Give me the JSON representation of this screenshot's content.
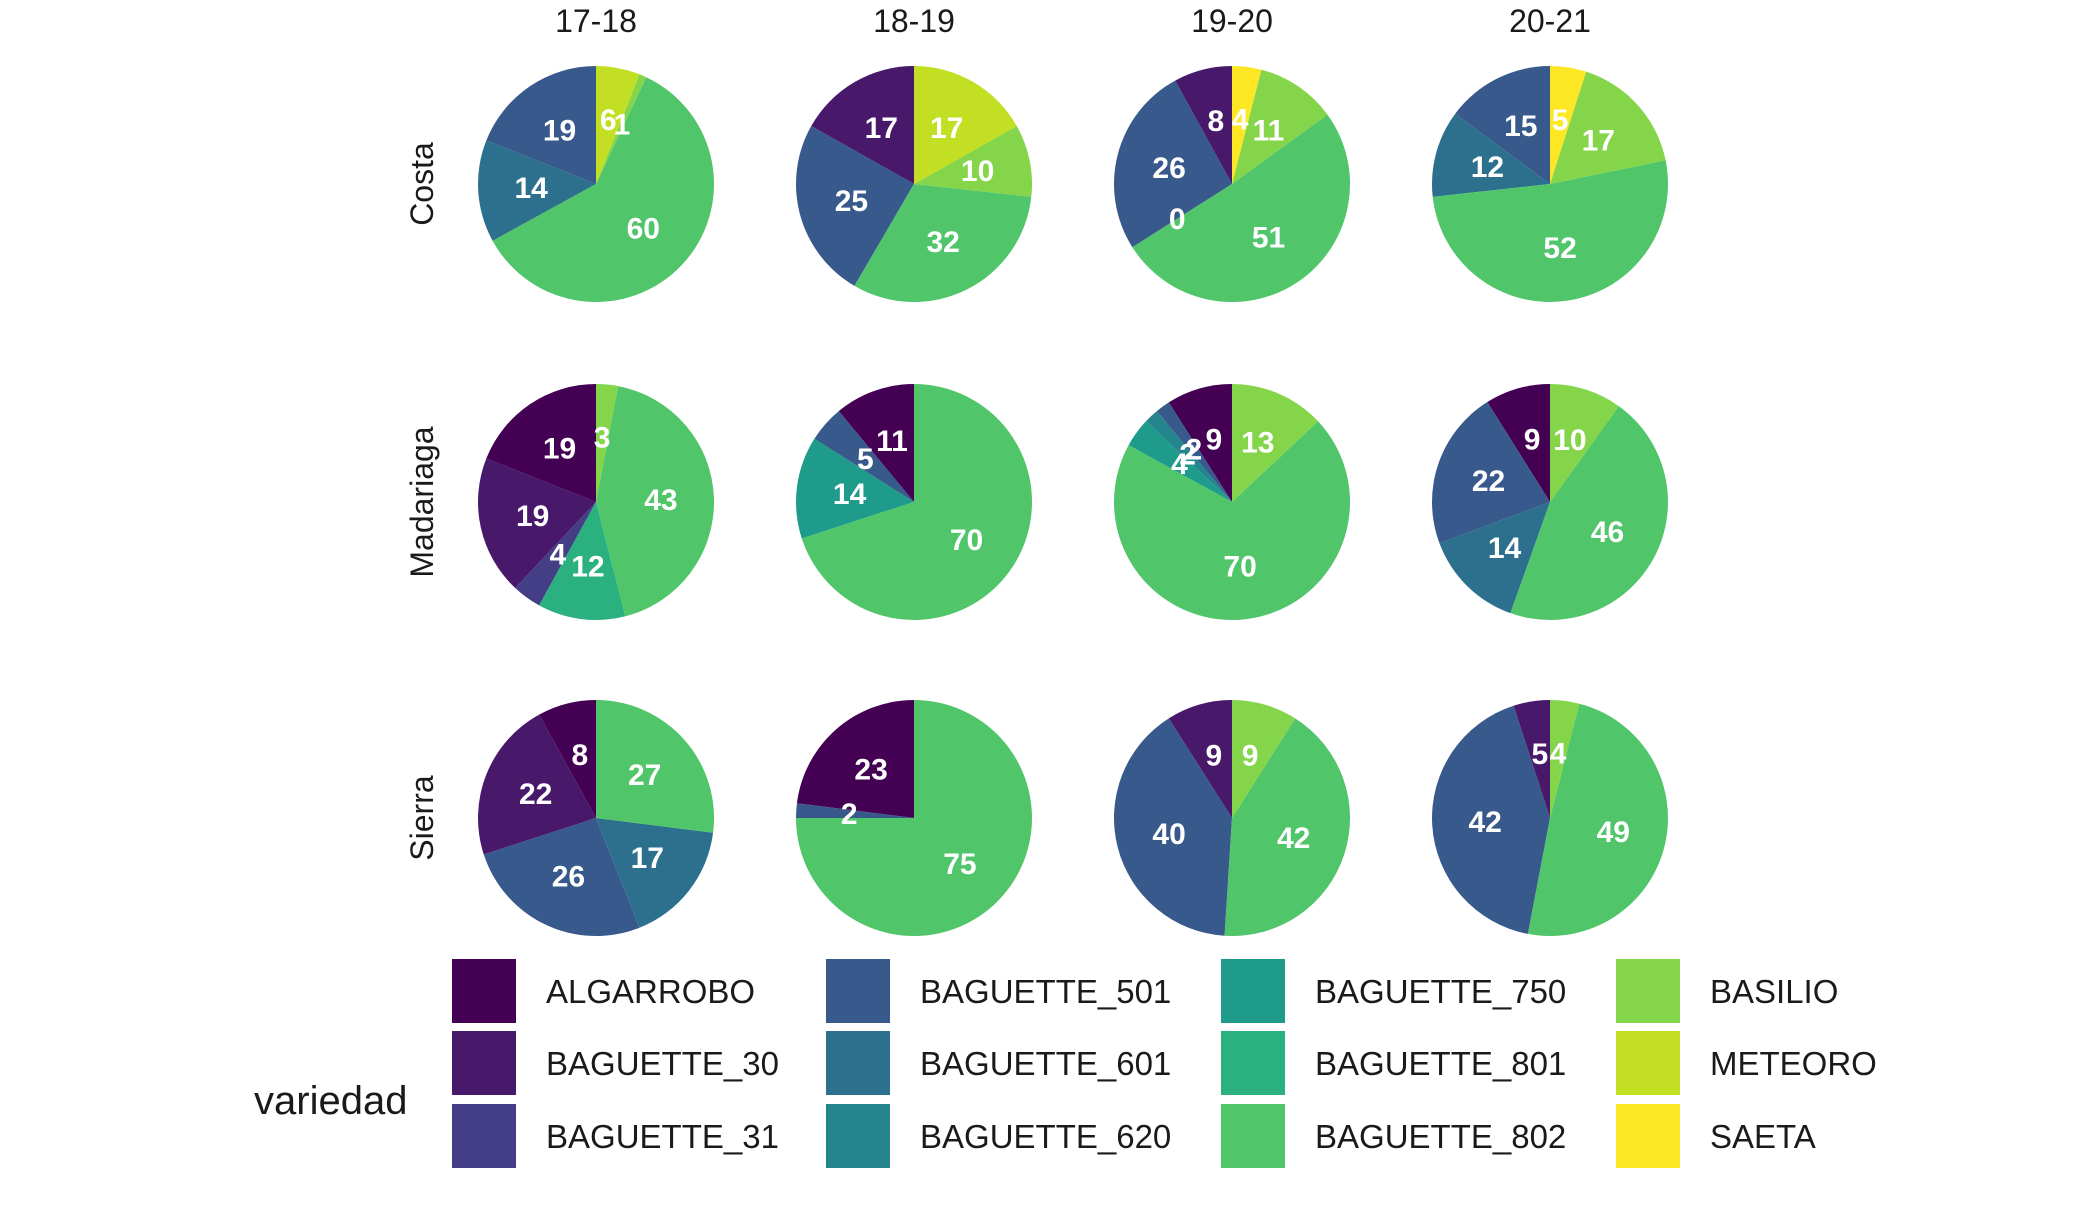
{
  "chart_data": {
    "type": "pie",
    "facet_columns": [
      "17-18",
      "18-19",
      "19-20",
      "20-21"
    ],
    "facet_rows": [
      "Costa",
      "Madariaga",
      "Sierra"
    ],
    "legend": {
      "title": "variedad",
      "position": "bottom",
      "items": [
        {
          "name": "ALGARROBO",
          "color": "#440154"
        },
        {
          "name": "BAGUETTE_30",
          "color": "#48196B"
        },
        {
          "name": "BAGUETTE_31",
          "color": "#433E85"
        },
        {
          "name": "BAGUETTE_501",
          "color": "#38598C"
        },
        {
          "name": "BAGUETTE_601",
          "color": "#2D708E"
        },
        {
          "name": "BAGUETTE_620",
          "color": "#25858E"
        },
        {
          "name": "BAGUETTE_750",
          "color": "#1E9B8A"
        },
        {
          "name": "BAGUETTE_801",
          "color": "#2BB07F"
        },
        {
          "name": "BAGUETTE_802",
          "color": "#51C56A"
        },
        {
          "name": "BASILIO",
          "color": "#85D54A"
        },
        {
          "name": "METEORO",
          "color": "#C2DF23"
        },
        {
          "name": "SAETA",
          "color": "#FDE725"
        }
      ]
    },
    "panels": [
      {
        "row": "Costa",
        "col": "17-18",
        "slices": [
          {
            "variedad": "BAGUETTE_501",
            "value": 19
          },
          {
            "variedad": "BAGUETTE_601",
            "value": 14
          },
          {
            "variedad": "BAGUETTE_802",
            "value": 60
          },
          {
            "variedad": "BASILIO",
            "value": 1
          },
          {
            "variedad": "METEORO",
            "value": 6
          }
        ]
      },
      {
        "row": "Costa",
        "col": "18-19",
        "slices": [
          {
            "variedad": "BAGUETTE_30",
            "value": 17
          },
          {
            "variedad": "BAGUETTE_501",
            "value": 25
          },
          {
            "variedad": "BAGUETTE_802",
            "value": 32
          },
          {
            "variedad": "BASILIO",
            "value": 10
          },
          {
            "variedad": "METEORO",
            "value": 17
          }
        ]
      },
      {
        "row": "Costa",
        "col": "19-20",
        "slices": [
          {
            "variedad": "BAGUETTE_30",
            "value": 8
          },
          {
            "variedad": "BAGUETTE_501",
            "value": 26
          },
          {
            "variedad": "BAGUETTE_601",
            "value": 0
          },
          {
            "variedad": "BAGUETTE_802",
            "value": 51
          },
          {
            "variedad": "BASILIO",
            "value": 11
          },
          {
            "variedad": "SAETA",
            "value": 4
          }
        ]
      },
      {
        "row": "Costa",
        "col": "20-21",
        "slices": [
          {
            "variedad": "BAGUETTE_501",
            "value": 15
          },
          {
            "variedad": "BAGUETTE_601",
            "value": 12
          },
          {
            "variedad": "BAGUETTE_802",
            "value": 52
          },
          {
            "variedad": "BASILIO",
            "value": 17
          },
          {
            "variedad": "SAETA",
            "value": 5
          }
        ]
      },
      {
        "row": "Madariaga",
        "col": "17-18",
        "slices": [
          {
            "variedad": "ALGARROBO",
            "value": 19
          },
          {
            "variedad": "BAGUETTE_30",
            "value": 19
          },
          {
            "variedad": "BAGUETTE_31",
            "value": 4
          },
          {
            "variedad": "BAGUETTE_801",
            "value": 12
          },
          {
            "variedad": "BAGUETTE_802",
            "value": 43
          },
          {
            "variedad": "BASILIO",
            "value": 3
          }
        ]
      },
      {
        "row": "Madariaga",
        "col": "18-19",
        "slices": [
          {
            "variedad": "ALGARROBO",
            "value": 11
          },
          {
            "variedad": "BAGUETTE_501",
            "value": 5
          },
          {
            "variedad": "BAGUETTE_750",
            "value": 14
          },
          {
            "variedad": "BAGUETTE_802",
            "value": 70
          }
        ]
      },
      {
        "row": "Madariaga",
        "col": "19-20",
        "slices": [
          {
            "variedad": "ALGARROBO",
            "value": 9
          },
          {
            "variedad": "BAGUETTE_501",
            "value": 2
          },
          {
            "variedad": "BAGUETTE_620",
            "value": 2
          },
          {
            "variedad": "BAGUETTE_750",
            "value": 4
          },
          {
            "variedad": "BAGUETTE_802",
            "value": 70
          },
          {
            "variedad": "BASILIO",
            "value": 13
          }
        ]
      },
      {
        "row": "Madariaga",
        "col": "20-21",
        "slices": [
          {
            "variedad": "ALGARROBO",
            "value": 9
          },
          {
            "variedad": "BAGUETTE_501",
            "value": 22
          },
          {
            "variedad": "BAGUETTE_601",
            "value": 14
          },
          {
            "variedad": "BAGUETTE_802",
            "value": 46
          },
          {
            "variedad": "BASILIO",
            "value": 10
          }
        ]
      },
      {
        "row": "Sierra",
        "col": "17-18",
        "slices": [
          {
            "variedad": "ALGARROBO",
            "value": 8
          },
          {
            "variedad": "BAGUETTE_30",
            "value": 22
          },
          {
            "variedad": "BAGUETTE_501",
            "value": 26
          },
          {
            "variedad": "BAGUETTE_601",
            "value": 17
          },
          {
            "variedad": "BAGUETTE_802",
            "value": 27
          }
        ]
      },
      {
        "row": "Sierra",
        "col": "18-19",
        "slices": [
          {
            "variedad": "ALGARROBO",
            "value": 23
          },
          {
            "variedad": "BAGUETTE_501",
            "value": 2
          },
          {
            "variedad": "BAGUETTE_802",
            "value": 75
          }
        ]
      },
      {
        "row": "Sierra",
        "col": "19-20",
        "slices": [
          {
            "variedad": "BAGUETTE_30",
            "value": 9
          },
          {
            "variedad": "BAGUETTE_501",
            "value": 40
          },
          {
            "variedad": "BAGUETTE_802",
            "value": 42
          },
          {
            "variedad": "BASILIO",
            "value": 9
          }
        ]
      },
      {
        "row": "Sierra",
        "col": "20-21",
        "slices": [
          {
            "variedad": "BAGUETTE_30",
            "value": 5
          },
          {
            "variedad": "BAGUETTE_501",
            "value": 42
          },
          {
            "variedad": "BAGUETTE_802",
            "value": 49
          },
          {
            "variedad": "BASILIO",
            "value": 4
          }
        ]
      }
    ]
  }
}
